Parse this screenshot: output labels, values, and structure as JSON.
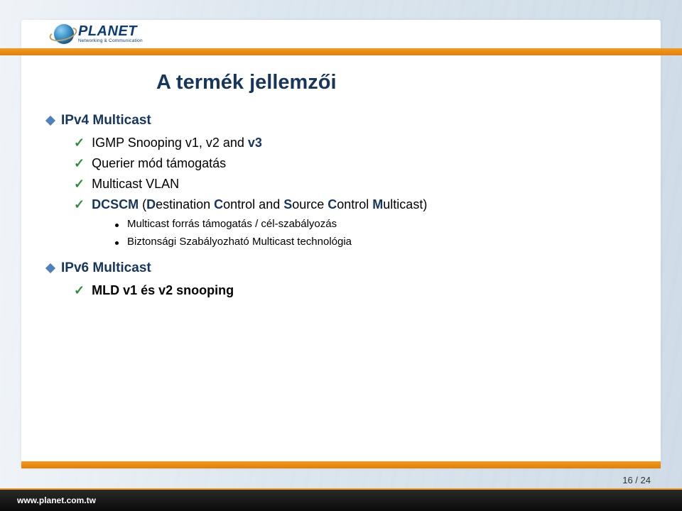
{
  "colors": {
    "accent_orange": "#f29a1f",
    "navy": "#17365d",
    "bullet_blue": "#4f81bd",
    "check_green": "#2f8a3a",
    "footer_bg": "#111111",
    "page_bg": "#e8eef2",
    "panel_bg": "#ffffff"
  },
  "logo": {
    "brand": "PLANET",
    "tagline": "Networking & Communication"
  },
  "title": "A termék jellemzői",
  "sections": [
    {
      "label": "IPv4 Multicast",
      "children": [
        {
          "html": "IGMP Snooping v1, v2 and <b class='nv'>v3</b>"
        },
        {
          "html": "Querier mód támogatás"
        },
        {
          "html": "Multicast VLAN"
        },
        {
          "html": "<b class='nv'>DCSCM</b> (<b class='nv'>D</b>estination <b class='nv'>C</b>ontrol and <b class='nv'>S</b>ource <b class='nv'>C</b>ontrol <b class='nv'>M</b>ulticast)",
          "sub": [
            "Multicast forrás támogatás / cél-szabályozás",
            "Biztonsági Szabályozható Multicast technológia"
          ]
        }
      ]
    },
    {
      "label": "IPv6 Multicast",
      "children": [
        {
          "html": "<b>MLD v1 és v2 snooping</b>"
        }
      ]
    }
  ],
  "footer": {
    "url": "www.planet.com.tw"
  },
  "page": {
    "current": 16,
    "total": 24,
    "display": "16 / 24"
  }
}
